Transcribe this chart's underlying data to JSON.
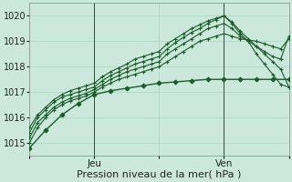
{
  "bg_color": "#cce8dc",
  "grid_color": "#a8d4c4",
  "line_color": "#1a5c2a",
  "xlabel": "Pression niveau de la mer( hPa )",
  "ylim": [
    1014.5,
    1020.5
  ],
  "yticks": [
    1015,
    1016,
    1017,
    1018,
    1019,
    1020
  ],
  "xtick_labels": [
    "",
    "Jeu",
    "",
    "Ven",
    ""
  ],
  "xtick_positions": [
    0,
    48,
    96,
    144,
    192
  ],
  "total_points": 193,
  "vlines_x": [
    48,
    144
  ],
  "xlabel_fontsize": 8,
  "ytick_fontsize": 7,
  "xtick_fontsize": 7.5,
  "series": [
    {
      "x": [
        0,
        6,
        12,
        18,
        24,
        30,
        36,
        42,
        48,
        54,
        60,
        66,
        72,
        78,
        84,
        90,
        96,
        102,
        108,
        114,
        120,
        126,
        132,
        138,
        144,
        150,
        156,
        162,
        168,
        174,
        180,
        186,
        192
      ],
      "y": [
        1015.0,
        1015.6,
        1016.0,
        1016.3,
        1016.5,
        1016.65,
        1016.75,
        1016.85,
        1017.0,
        1017.2,
        1017.35,
        1017.5,
        1017.6,
        1017.7,
        1017.8,
        1017.9,
        1018.0,
        1018.2,
        1018.4,
        1018.6,
        1018.8,
        1019.0,
        1019.1,
        1019.2,
        1019.3,
        1019.2,
        1019.1,
        1019.05,
        1019.0,
        1018.9,
        1018.8,
        1018.7,
        1019.1
      ],
      "lw": 0.8
    },
    {
      "x": [
        0,
        6,
        12,
        18,
        24,
        30,
        36,
        42,
        48,
        54,
        60,
        66,
        72,
        78,
        84,
        90,
        96,
        102,
        108,
        114,
        120,
        126,
        132,
        138,
        144,
        150,
        156,
        162,
        168,
        174,
        180,
        186,
        192
      ],
      "y": [
        1015.2,
        1015.8,
        1016.1,
        1016.4,
        1016.6,
        1016.75,
        1016.85,
        1016.95,
        1017.1,
        1017.3,
        1017.5,
        1017.65,
        1017.8,
        1017.9,
        1018.0,
        1018.1,
        1018.2,
        1018.5,
        1018.7,
        1018.9,
        1019.1,
        1019.3,
        1019.5,
        1019.6,
        1019.7,
        1019.5,
        1019.2,
        1019.0,
        1018.8,
        1018.6,
        1018.4,
        1018.3,
        1019.2
      ],
      "lw": 0.8
    },
    {
      "x": [
        0,
        6,
        12,
        18,
        24,
        30,
        36,
        42,
        48,
        54,
        60,
        66,
        72,
        78,
        84,
        90,
        96,
        102,
        108,
        114,
        120,
        126,
        132,
        138,
        144,
        150,
        156,
        162,
        168,
        174,
        180,
        186,
        192
      ],
      "y": [
        1015.4,
        1016.0,
        1016.3,
        1016.6,
        1016.8,
        1016.9,
        1017.0,
        1017.1,
        1017.2,
        1017.45,
        1017.65,
        1017.8,
        1017.95,
        1018.1,
        1018.2,
        1018.3,
        1018.4,
        1018.7,
        1018.95,
        1019.15,
        1019.35,
        1019.5,
        1019.7,
        1019.85,
        1020.0,
        1019.75,
        1019.4,
        1019.1,
        1018.8,
        1018.5,
        1018.2,
        1017.9,
        1017.2
      ],
      "lw": 0.8
    },
    {
      "x": [
        0,
        6,
        12,
        18,
        24,
        30,
        36,
        42,
        48,
        54,
        60,
        66,
        72,
        78,
        84,
        90,
        96,
        102,
        108,
        114,
        120,
        126,
        132,
        138,
        144,
        150,
        156,
        162,
        168,
        174,
        180,
        186,
        192
      ],
      "y": [
        1015.6,
        1016.1,
        1016.4,
        1016.7,
        1016.9,
        1017.05,
        1017.15,
        1017.25,
        1017.35,
        1017.6,
        1017.8,
        1017.95,
        1018.1,
        1018.3,
        1018.4,
        1018.5,
        1018.6,
        1018.9,
        1019.1,
        1019.3,
        1019.5,
        1019.65,
        1019.8,
        1019.9,
        1020.0,
        1019.7,
        1019.3,
        1019.0,
        1018.5,
        1018.1,
        1017.7,
        1017.3,
        1017.2
      ],
      "lw": 0.8
    },
    {
      "x": [
        0,
        12,
        24,
        36,
        48,
        60,
        72,
        84,
        96,
        108,
        120,
        132,
        144,
        156,
        168,
        180,
        192
      ],
      "y": [
        1014.8,
        1015.5,
        1016.1,
        1016.55,
        1016.9,
        1017.05,
        1017.15,
        1017.25,
        1017.35,
        1017.4,
        1017.45,
        1017.5,
        1017.5,
        1017.5,
        1017.5,
        1017.5,
        1017.5
      ],
      "lw": 1.0
    }
  ]
}
